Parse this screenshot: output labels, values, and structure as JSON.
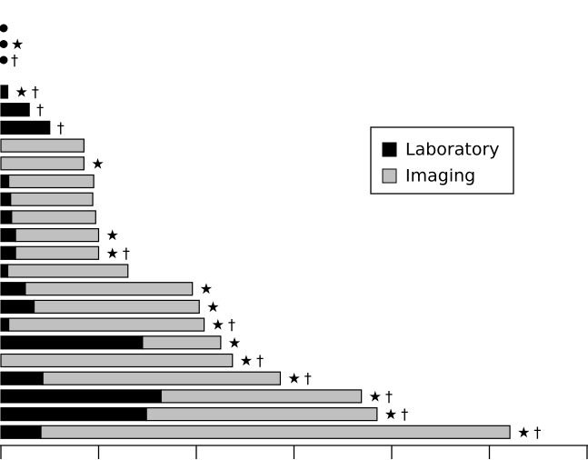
{
  "chart_data": {
    "type": "stacked-barh",
    "series": [
      {
        "name": "Laboratory",
        "color": "#000000",
        "values": [
          0,
          0,
          0,
          0.07,
          0.29,
          0.5,
          0,
          0,
          0.08,
          0.1,
          0.11,
          0.15,
          0.15,
          0.07,
          0.25,
          0.34,
          0.08,
          1.45,
          0,
          0.43,
          1.64,
          1.49,
          0.41
        ]
      },
      {
        "name": "Imaging",
        "color": "#c0c0c0",
        "values": [
          0,
          0,
          0,
          0,
          0,
          0,
          0.85,
          0.85,
          0.87,
          0.84,
          0.86,
          0.85,
          0.85,
          1.23,
          1.71,
          1.69,
          2.0,
          0.8,
          2.37,
          2.43,
          2.05,
          2.36,
          4.8
        ]
      }
    ],
    "annotations": [
      null,
      "★",
      "†",
      "★†",
      "†",
      "†",
      null,
      "★",
      null,
      null,
      null,
      "★",
      "★†",
      null,
      "★",
      "★",
      "★†",
      "★",
      "★†",
      "★†",
      "★†",
      "★†",
      "★†"
    ],
    "xlim": [
      0,
      6
    ],
    "xticks": [
      0,
      1,
      2,
      3,
      4,
      5,
      6
    ]
  }
}
